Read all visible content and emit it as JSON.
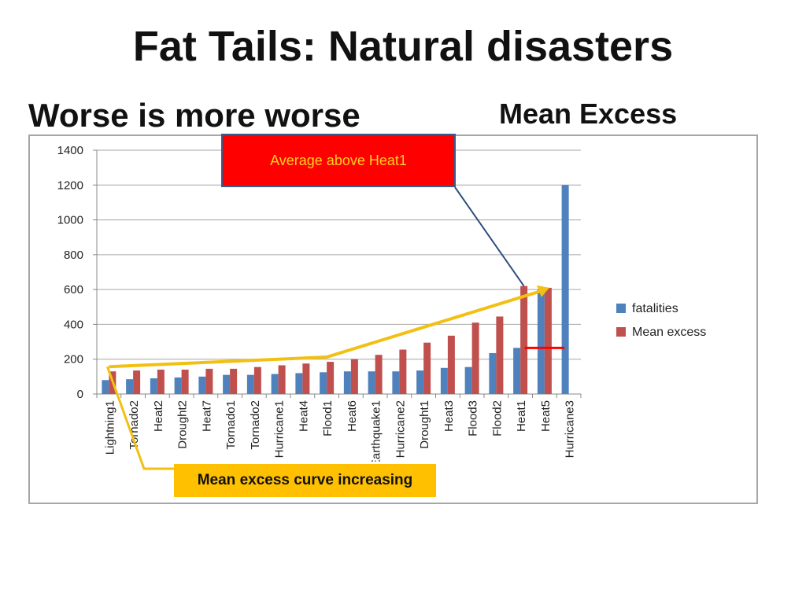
{
  "slide": {
    "title": "Fat Tails:  Natural disasters",
    "subtitle_left": "Worse is more worse",
    "subtitle_right": "Mean Excess"
  },
  "annotations": {
    "average_above": "Average above Heat1",
    "curve_increasing": "Mean excess curve increasing"
  },
  "colors": {
    "fatalities": "#4f81bd",
    "mean_excess": "#c0504d",
    "highlight_line": "#ff0000",
    "arrow_yellow": "#f2c012",
    "callout_line": "#2f4f7f"
  },
  "chart_data": {
    "type": "bar",
    "categories": [
      "Lightning1",
      "Tornado2",
      "Heat2",
      "Drought2",
      "Heat7",
      "Tornado1",
      "Tornado2",
      "Hurricane1",
      "Heat4",
      "Flood1",
      "Heat6",
      "Earthquake1",
      "Hurricane2",
      "Drought1",
      "Heat3",
      "Flood3",
      "Flood2",
      "Heat1",
      "Heat5",
      "Hurricane3"
    ],
    "series": [
      {
        "name": "fatalities",
        "values": [
          80,
          85,
          90,
          95,
          100,
          110,
          110,
          115,
          120,
          125,
          130,
          130,
          130,
          135,
          150,
          155,
          235,
          265,
          600,
          1200
        ]
      },
      {
        "name": "Mean excess",
        "values": [
          130,
          135,
          140,
          140,
          145,
          145,
          155,
          165,
          175,
          185,
          200,
          225,
          255,
          295,
          335,
          410,
          445,
          620,
          610,
          0
        ]
      }
    ],
    "ylim": [
      0,
      1400
    ],
    "yticks": [
      0,
      200,
      400,
      600,
      800,
      1000,
      1200,
      1400
    ],
    "grid": true,
    "legend_position": "right",
    "mean_excess_reference": 265
  }
}
